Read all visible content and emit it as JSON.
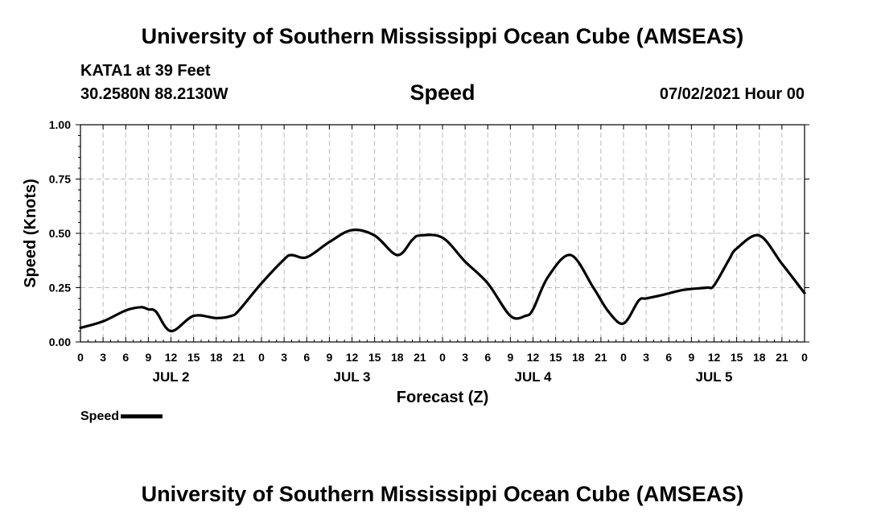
{
  "header": {
    "top_title": "University of Southern Mississippi Ocean Cube (AMSEAS)",
    "station": "KATA1 at 39 Feet",
    "coordinates": "30.2580N  88.2130W",
    "chart_title": "Speed",
    "datetime": "07/02/2021 Hour 00"
  },
  "footer": {
    "bottom_title": "University of Southern Mississippi Ocean Cube (AMSEAS)"
  },
  "legend": {
    "label": "Speed"
  },
  "colors": {
    "line": "#000000",
    "grid": "#bbbbbb",
    "axis": "#000000"
  },
  "chart_data": {
    "type": "line",
    "title": "Speed",
    "xlabel": "Forecast (Z)",
    "ylabel": "Speed (Knots)",
    "xlim": [
      0,
      96
    ],
    "ylim": [
      0,
      1
    ],
    "grid": true,
    "legend_position": "bottom-left",
    "y_ticks": [
      "0.00",
      "0.25",
      "0.50",
      "0.75",
      "1.00"
    ],
    "y_tick_values": [
      0,
      0.25,
      0.5,
      0.75,
      1.0
    ],
    "x_ticks": [
      "0",
      "3",
      "6",
      "9",
      "12",
      "15",
      "18",
      "21",
      "0",
      "3",
      "6",
      "9",
      "12",
      "15",
      "18",
      "21",
      "0",
      "3",
      "6",
      "9",
      "12",
      "15",
      "18",
      "21",
      "0",
      "3",
      "6",
      "9",
      "12",
      "15",
      "18",
      "21",
      "0"
    ],
    "day_labels": [
      {
        "label": "JUL 2",
        "hour": 12
      },
      {
        "label": "JUL 3",
        "hour": 36
      },
      {
        "label": "JUL 4",
        "hour": 60
      },
      {
        "label": "JUL 5",
        "hour": 84
      }
    ],
    "series": [
      {
        "name": "Speed",
        "x": [
          0,
          3,
          6,
          8,
          9,
          10,
          12,
          15,
          18,
          20,
          21,
          24,
          27,
          28,
          30,
          33,
          36,
          39,
          42,
          44,
          45,
          48,
          51,
          54,
          57,
          59,
          60,
          62,
          65,
          68,
          70,
          72,
          74,
          75,
          77,
          80,
          83,
          84,
          86,
          87,
          90,
          93,
          96
        ],
        "values": [
          0.065,
          0.095,
          0.145,
          0.16,
          0.15,
          0.14,
          0.05,
          0.12,
          0.11,
          0.12,
          0.145,
          0.27,
          0.38,
          0.4,
          0.39,
          0.46,
          0.515,
          0.49,
          0.4,
          0.47,
          0.49,
          0.48,
          0.37,
          0.27,
          0.12,
          0.12,
          0.15,
          0.3,
          0.4,
          0.25,
          0.14,
          0.085,
          0.19,
          0.2,
          0.215,
          0.24,
          0.25,
          0.26,
          0.38,
          0.43,
          0.49,
          0.36,
          0.225
        ]
      }
    ]
  }
}
